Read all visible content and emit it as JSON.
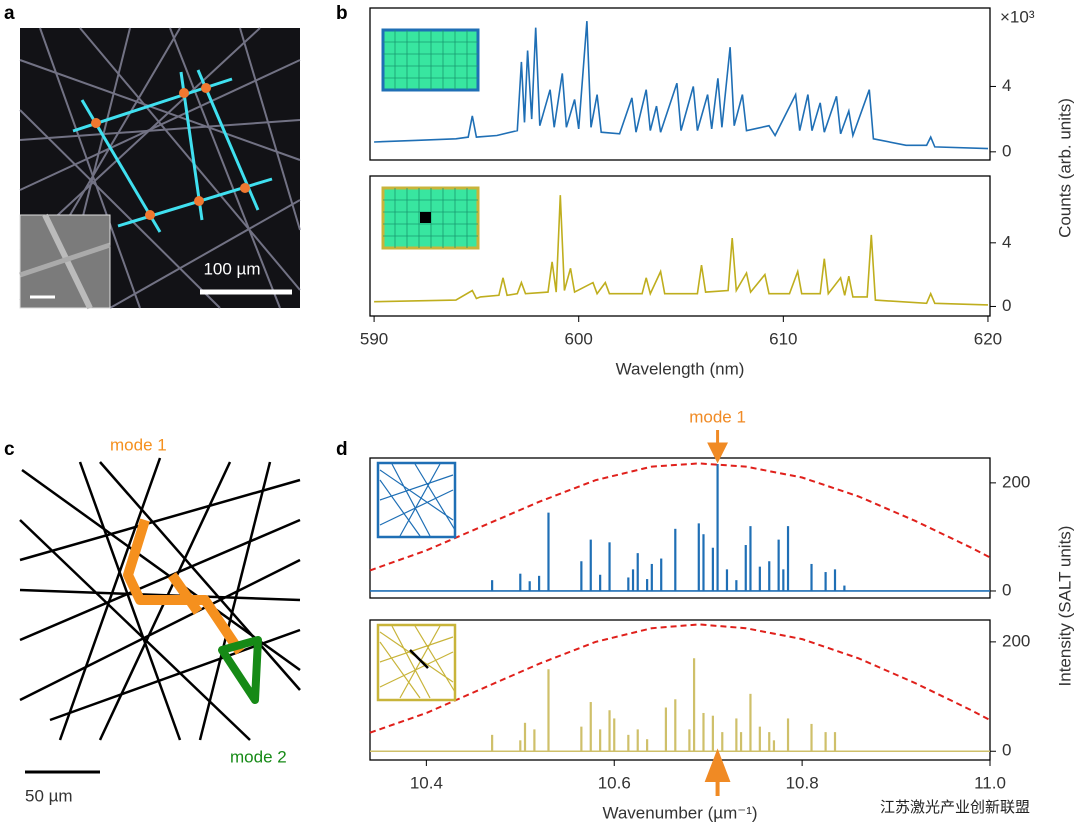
{
  "figure": {
    "panel_labels": [
      "a",
      "b",
      "c",
      "d"
    ],
    "scale_bar_a": "100 µm",
    "scale_bar_c": "50 µm",
    "mode_1": "mode 1",
    "mode_2": "mode 2",
    "watermark": "江苏激光产业创新联盟"
  },
  "chart_data": [
    {
      "type": "line",
      "xlim": [
        589.8,
        620.1
      ],
      "ylim": [
        -0.5,
        8.8
      ],
      "yticks": [
        0,
        4
      ],
      "y_multiplier": "×10³",
      "ylabel": "Counts (arb. units)",
      "x": [
        590,
        592,
        594,
        594.6,
        594.8,
        595.0,
        596,
        597.0,
        597.2,
        597.35,
        597.5,
        597.7,
        597.9,
        598.1,
        598.6,
        598.8,
        599.2,
        599.4,
        599.8,
        600.0,
        600.4,
        600.6,
        600.9,
        601.1,
        602.0,
        602.6,
        602.8,
        603.3,
        603.5,
        603.8,
        604.0,
        604.8,
        605.0,
        605.6,
        605.8,
        606.3,
        606.5,
        606.8,
        607.0,
        607.4,
        607.6,
        608.0,
        608.2,
        609.3,
        609.6,
        610.6,
        610.8,
        611.2,
        611.4,
        611.8,
        612.0,
        612.6,
        612.8,
        613.2,
        613.4,
        614.2,
        614.4,
        616,
        617.0,
        617.2,
        617.4,
        620
      ],
      "series": [
        {
          "color": "#1f6fb5",
          "values": [
            0.6,
            0.7,
            0.8,
            0.9,
            2.2,
            0.9,
            1.0,
            1.3,
            5.5,
            1.8,
            6.2,
            2.0,
            7.6,
            1.6,
            3.8,
            1.5,
            4.8,
            1.5,
            3.2,
            1.4,
            8.0,
            1.5,
            3.5,
            1.2,
            1.1,
            3.3,
            1.2,
            3.8,
            1.3,
            2.8,
            1.2,
            4.2,
            1.3,
            4.0,
            1.3,
            3.5,
            1.4,
            4.5,
            1.5,
            6.4,
            1.6,
            3.5,
            1.3,
            1.6,
            1.0,
            3.5,
            1.3,
            3.5,
            1.3,
            3.0,
            1.2,
            3.4,
            1.1,
            2.5,
            1.0,
            3.8,
            0.8,
            0.4,
            0.4,
            0.9,
            0.3,
            0.2
          ]
        }
      ]
    },
    {
      "type": "line",
      "xlim": [
        589.8,
        620.1
      ],
      "ylim": [
        -0.6,
        8.2
      ],
      "yticks": [
        0,
        4
      ],
      "xticks": [
        590,
        600,
        610,
        620
      ],
      "xlabel": "Wavelength (nm)",
      "x": [
        590,
        594,
        594.8,
        595.0,
        595.2,
        596.1,
        596.3,
        596.5,
        597.0,
        597.2,
        597.4,
        598.5,
        598.7,
        598.9,
        599.1,
        599.3,
        599.6,
        599.8,
        600.7,
        600.9,
        601.3,
        601.5,
        603.1,
        603.3,
        603.5,
        604.0,
        604.2,
        605.8,
        606.0,
        606.2,
        607.3,
        607.5,
        607.7,
        608.2,
        608.4,
        609.1,
        609.3,
        610.3,
        610.5,
        610.7,
        610.9,
        611.8,
        612.0,
        612.2,
        612.8,
        613.0,
        613.2,
        613.4,
        614.1,
        614.3,
        614.5,
        617.0,
        617.2,
        617.4,
        620
      ],
      "series": [
        {
          "color": "#bfae1e",
          "values": [
            0.3,
            0.4,
            1.0,
            0.5,
            0.6,
            0.7,
            1.8,
            0.7,
            0.8,
            1.5,
            0.8,
            0.9,
            2.8,
            0.9,
            7.0,
            1.0,
            2.4,
            0.9,
            1.5,
            0.8,
            1.5,
            0.8,
            0.8,
            1.8,
            0.8,
            2.2,
            0.8,
            0.8,
            2.6,
            0.9,
            1.0,
            4.3,
            1.0,
            2.1,
            0.9,
            2.0,
            0.8,
            0.8,
            1.5,
            2.2,
            0.8,
            0.8,
            3.0,
            0.8,
            1.8,
            0.7,
            1.9,
            0.6,
            0.6,
            4.5,
            0.4,
            0.2,
            0.8,
            0.2,
            0.1
          ]
        }
      ]
    },
    {
      "type": "stem",
      "xlim": [
        10.34,
        11.0
      ],
      "ylim": [
        -13,
        246
      ],
      "yticks": [
        0,
        200
      ],
      "ylabel": "Intensity (SALT units)",
      "x": [
        10.47,
        10.5,
        10.51,
        10.52,
        10.53,
        10.565,
        10.575,
        10.585,
        10.595,
        10.615,
        10.62,
        10.625,
        10.635,
        10.64,
        10.65,
        10.665,
        10.69,
        10.695,
        10.705,
        10.71,
        10.72,
        10.73,
        10.74,
        10.745,
        10.755,
        10.765,
        10.775,
        10.78,
        10.785,
        10.81,
        10.825,
        10.835,
        10.845
      ],
      "series": [
        {
          "color": "#1f6fb5",
          "values": [
            20,
            32,
            18,
            28,
            145,
            55,
            95,
            30,
            90,
            25,
            40,
            70,
            22,
            50,
            60,
            115,
            125,
            105,
            80,
            235,
            40,
            20,
            85,
            120,
            45,
            55,
            95,
            40,
            120,
            50,
            35,
            40,
            10
          ]
        }
      ],
      "curve": {
        "color": "#e0201b",
        "x": [
          10.34,
          10.4,
          10.46,
          10.52,
          10.58,
          10.64,
          10.69,
          10.74,
          10.8,
          10.86,
          10.92,
          10.98,
          11.0
        ],
        "values": [
          38,
          75,
          120,
          165,
          205,
          230,
          236,
          230,
          210,
          175,
          130,
          80,
          62
        ]
      },
      "annotation": {
        "text": "mode 1",
        "x": 10.71,
        "color": "#f08a24"
      }
    },
    {
      "type": "stem",
      "xlim": [
        10.34,
        11.0
      ],
      "ylim": [
        -16,
        240
      ],
      "yticks": [
        0,
        200
      ],
      "xticks": [
        10.4,
        10.6,
        10.8,
        {
          "value": 11,
          "label": "11.0"
        }
      ],
      "xlabel": "Wavenumber (µm⁻¹)",
      "x": [
        10.47,
        10.5,
        10.505,
        10.515,
        10.53,
        10.565,
        10.575,
        10.585,
        10.595,
        10.6,
        10.615,
        10.625,
        10.635,
        10.655,
        10.665,
        10.68,
        10.685,
        10.695,
        10.705,
        10.715,
        10.73,
        10.735,
        10.745,
        10.755,
        10.765,
        10.77,
        10.785,
        10.81,
        10.825,
        10.835
      ],
      "series": [
        {
          "color": "#cfc06a",
          "values": [
            30,
            20,
            52,
            40,
            150,
            45,
            90,
            40,
            75,
            60,
            30,
            40,
            22,
            80,
            95,
            40,
            170,
            70,
            65,
            35,
            60,
            35,
            105,
            45,
            35,
            20,
            60,
            50,
            35,
            35
          ]
        }
      ],
      "curve": {
        "color": "#e0201b",
        "x": [
          10.34,
          10.4,
          10.46,
          10.52,
          10.58,
          10.64,
          10.69,
          10.74,
          10.8,
          10.86,
          10.92,
          10.98,
          11.0
        ],
        "values": [
          34,
          70,
          115,
          160,
          200,
          225,
          232,
          225,
          205,
          170,
          125,
          75,
          57
        ]
      },
      "annotation": {
        "x": 10.71,
        "color": "#f08a24"
      }
    }
  ]
}
